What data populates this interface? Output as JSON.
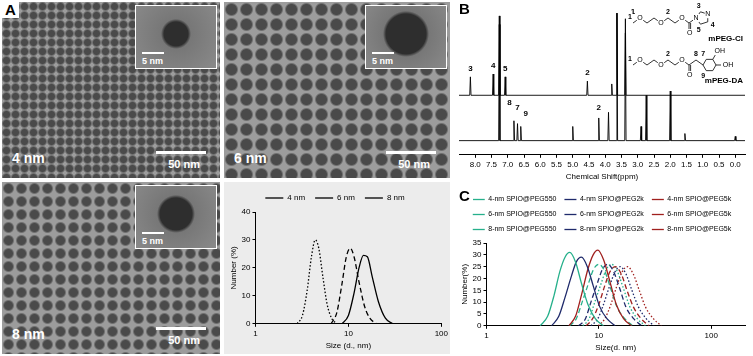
{
  "figure": {
    "panel_labels": [
      "A",
      "B",
      "C"
    ],
    "tem_images": [
      {
        "label": "4 nm",
        "scale_bar": "50 nm",
        "inset_scale_bar": "5 nm"
      },
      {
        "label": "6 nm",
        "scale_bar": "50 nm",
        "inset_scale_bar": "5 nm"
      },
      {
        "label": "8 nm",
        "scale_bar": "50 nm",
        "inset_scale_bar": "5 nm"
      }
    ],
    "structures": [
      {
        "name": "mPEG-CI",
        "atoms": [
          "O",
          "O",
          "O",
          "O",
          "N",
          "N"
        ],
        "labels": [
          "1",
          "2",
          "3",
          "4",
          "5"
        ]
      },
      {
        "name": "mPEG-DA",
        "atoms": [
          "O",
          "O",
          "O",
          "O",
          "OH",
          "OH"
        ],
        "labels": [
          "1",
          "2",
          "7",
          "8",
          "9"
        ]
      }
    ]
  },
  "chart_data": [
    {
      "type": "line",
      "x_label": "Size (d., nm)",
      "y_label": "Number (%)",
      "log": "x",
      "xlim": [
        1,
        100
      ],
      "xticks": [
        1,
        10,
        100
      ],
      "ylim": [
        0,
        40
      ],
      "yticks": [
        0,
        10,
        20,
        30,
        40
      ],
      "grid": false,
      "legend": "top",
      "series": [
        {
          "name": "4 nm",
          "color": "#000000",
          "line_style": "dotted",
          "x": [
            2.8,
            3.2,
            3.6,
            4.0,
            4.4,
            4.8,
            5.3,
            5.9,
            6.6,
            7.5
          ],
          "values": [
            0,
            3,
            12,
            24,
            30,
            27,
            17,
            7,
            2,
            0
          ]
        },
        {
          "name": "6 nm",
          "color": "#000000",
          "line_style": "dashed",
          "x": [
            6.5,
            7.5,
            8.5,
            9.5,
            10.5,
            11.5,
            13,
            15,
            17,
            20
          ],
          "values": [
            0,
            4,
            14,
            24,
            27,
            24,
            15,
            6,
            2,
            0
          ]
        },
        {
          "name": "8 nm",
          "color": "#000000",
          "line_style": "solid",
          "x": [
            8.5,
            10,
            11.5,
            13,
            14.5,
            16,
            18,
            21,
            25,
            30
          ],
          "values": [
            0,
            3,
            11,
            20,
            24.5,
            24,
            17,
            8,
            2,
            0
          ]
        }
      ]
    },
    {
      "type": "line",
      "x_label": "Chemical Shift(ppm)",
      "xlim": [
        8.5,
        -0.3
      ],
      "xticks": [
        {
          "value": 8,
          "label": "8.0"
        },
        7.5,
        {
          "value": 7,
          "label": "7.0"
        },
        6.5,
        {
          "value": 6,
          "label": "6.0"
        },
        5.5,
        {
          "value": 5,
          "label": "5.0"
        },
        4.5,
        {
          "value": 4,
          "label": "4.0"
        },
        3.5,
        {
          "value": 3,
          "label": "3.0"
        },
        2.5,
        {
          "value": 2,
          "label": "2.0"
        },
        1.5,
        {
          "value": 1,
          "label": "1.0"
        },
        0.5,
        {
          "value": 0,
          "label": "0.0"
        }
      ],
      "ylim": [
        0,
        1.05
      ],
      "tick_labels": "x",
      "grid": false,
      "legend": false,
      "series": [
        {
          "name": "mPEG-CI",
          "color": "#000000",
          "line_style": "solid",
          "x": [
            8.5,
            8.17,
            8.15,
            8.13,
            7.47,
            7.45,
            7.43,
            7.28,
            7.26,
            7.24,
            7.1,
            7.08,
            7.06,
            4.57,
            4.55,
            4.53,
            3.82,
            3.8,
            3.78,
            3.66,
            3.64,
            3.62,
            3.4,
            3.38,
            3.36,
            -0.3
          ],
          "values": [
            0.42,
            0.42,
            0.55,
            0.42,
            0.42,
            0.57,
            0.42,
            0.42,
            0.98,
            0.42,
            0.42,
            0.55,
            0.42,
            0.42,
            0.52,
            0.42,
            0.42,
            0.5,
            0.42,
            0.42,
            1.0,
            0.42,
            0.42,
            0.96,
            0.42,
            0.42
          ]
        },
        {
          "name": "mPEG-DA",
          "color": "#000000",
          "line_style": "solid",
          "x": [
            8.5,
            7.28,
            7.26,
            7.24,
            6.83,
            6.81,
            6.79,
            6.72,
            6.7,
            6.68,
            6.62,
            6.6,
            6.58,
            5.02,
            5.0,
            4.98,
            4.22,
            4.2,
            4.18,
            3.92,
            3.9,
            3.88,
            3.66,
            3.64,
            3.62,
            3.4,
            3.38,
            3.36,
            2.92,
            2.9,
            2.88,
            2.76,
            2.74,
            2.72,
            2.02,
            2.0,
            1.98,
            1.57,
            1.55,
            1.53,
            0.02,
            0,
            -0.02,
            -0.3
          ],
          "values": [
            0.1,
            0.1,
            0.92,
            0.1,
            0.1,
            0.24,
            0.1,
            0.1,
            0.22,
            0.1,
            0.1,
            0.2,
            0.1,
            0.1,
            0.2,
            0.1,
            0.1,
            0.26,
            0.1,
            0.1,
            0.3,
            0.1,
            0.1,
            1.0,
            0.1,
            0.1,
            0.86,
            0.1,
            0.1,
            0.2,
            0.1,
            0.1,
            0.42,
            0.1,
            0.1,
            0.45,
            0.1,
            0.1,
            0.15,
            0.1,
            0.1,
            0.13,
            0.1,
            0.1
          ]
        }
      ],
      "annotations": [
        {
          "text": "3",
          "x": 8.15,
          "y": 0.58
        },
        {
          "text": "4",
          "x": 7.45,
          "y": 0.6
        },
        {
          "text": "5",
          "x": 7.08,
          "y": 0.58
        },
        {
          "text": "2",
          "x": 4.55,
          "y": 0.55
        },
        {
          "text": "1",
          "x": 3.15,
          "y": 0.98
        },
        {
          "text": "8",
          "x": 6.95,
          "y": 0.34
        },
        {
          "text": "7",
          "x": 6.7,
          "y": 0.3
        },
        {
          "text": "9",
          "x": 6.45,
          "y": 0.26
        },
        {
          "text": "2",
          "x": 4.2,
          "y": 0.3
        }
      ]
    },
    {
      "type": "line",
      "x_label": "Size(d. nm)",
      "y_label": "Number(%)",
      "log": "x",
      "xlim": [
        1,
        200
      ],
      "xticks": [
        1,
        10,
        100
      ],
      "ylim": [
        0,
        35
      ],
      "yticks": [
        0,
        5,
        10,
        15,
        20,
        25,
        30,
        35
      ],
      "grid": false,
      "legend": "top",
      "series": [
        {
          "name": "4-nm SPIO@PEG550",
          "color": "#26b08b",
          "line_style": "solid",
          "x": [
            3.0,
            3.5,
            4.0,
            4.5,
            5.0,
            5.5,
            6.2,
            7.0,
            8.0,
            9.3,
            11
          ],
          "values": [
            0,
            4,
            13,
            23,
            29,
            31,
            27,
            18,
            9,
            3,
            0
          ]
        },
        {
          "name": "4-nm SPIO@PEG2k",
          "color": "#1f2a6b",
          "line_style": "solid",
          "x": [
            3.8,
            4.4,
            5.0,
            5.7,
            6.3,
            7.0,
            7.9,
            8.9,
            10.2,
            11.8,
            14
          ],
          "values": [
            0,
            4,
            12,
            21,
            27,
            29,
            25,
            17,
            8,
            3,
            0
          ]
        },
        {
          "name": "4-nm SPIO@PEG5k",
          "color": "#a0201e",
          "line_style": "solid",
          "x": [
            5.4,
            6.2,
            7.0,
            8.0,
            8.9,
            9.8,
            11,
            12.5,
            14.3,
            16.6,
            19.6
          ],
          "values": [
            0,
            4,
            13,
            24,
            30,
            32,
            28,
            19,
            9,
            3,
            0
          ]
        },
        {
          "name": "6-nm SPIO@PEG550",
          "color": "#26b08b",
          "line_style": "dashed",
          "x": [
            5.5,
            6.3,
            7.1,
            8.1,
            9.0,
            10,
            11.3,
            12.7,
            14.5,
            17,
            20
          ],
          "values": [
            0,
            3,
            10,
            18,
            24,
            26,
            23,
            16,
            8,
            3,
            0
          ]
        },
        {
          "name": "6-nm SPIO@PEG2k",
          "color": "#1f2a6b",
          "line_style": "dashed",
          "x": [
            6.6,
            7.6,
            8.5,
            9.7,
            10.8,
            12,
            13.5,
            15.3,
            17.4,
            20.4,
            24
          ],
          "values": [
            0,
            3,
            10,
            18,
            24,
            26,
            23,
            16,
            8,
            3,
            0
          ]
        },
        {
          "name": "6-nm SPIO@PEG5k",
          "color": "#a0201e",
          "line_style": "dashed",
          "x": [
            7.7,
            8.8,
            10,
            11.3,
            12.6,
            14,
            15.8,
            17.8,
            20.3,
            23.8,
            28
          ],
          "values": [
            0,
            3,
            9,
            17,
            23,
            25,
            22,
            15,
            8,
            3,
            0
          ]
        },
        {
          "name": "8-nm SPIO@PEG550",
          "color": "#26b08b",
          "line_style": "dotted",
          "x": [
            7.2,
            8.2,
            9.2,
            10.5,
            11.7,
            13,
            14.6,
            16.5,
            18.9,
            22,
            26
          ],
          "values": [
            0,
            3,
            10,
            18,
            24,
            26,
            23,
            16,
            8,
            3,
            0
          ]
        },
        {
          "name": "8-nm SPIO@PEG2k",
          "color": "#1f2a6b",
          "line_style": "dotted",
          "x": [
            8.5,
            9.8,
            11,
            12.5,
            14,
            15.5,
            17.4,
            19.7,
            22.5,
            26.4,
            31
          ],
          "values": [
            0,
            3,
            9,
            17,
            23,
            25,
            22,
            15,
            8,
            3,
            0
          ]
        },
        {
          "name": "8-nm SPIO@PEG5k",
          "color": "#a0201e",
          "line_style": "dotted",
          "x": [
            9.9,
            11.3,
            12.8,
            14.5,
            16.2,
            18,
            20.2,
            22.9,
            26,
            30.6,
            36
          ],
          "values": [
            0,
            3,
            9,
            17,
            23,
            25,
            22,
            15,
            8,
            3,
            0
          ]
        }
      ]
    }
  ]
}
